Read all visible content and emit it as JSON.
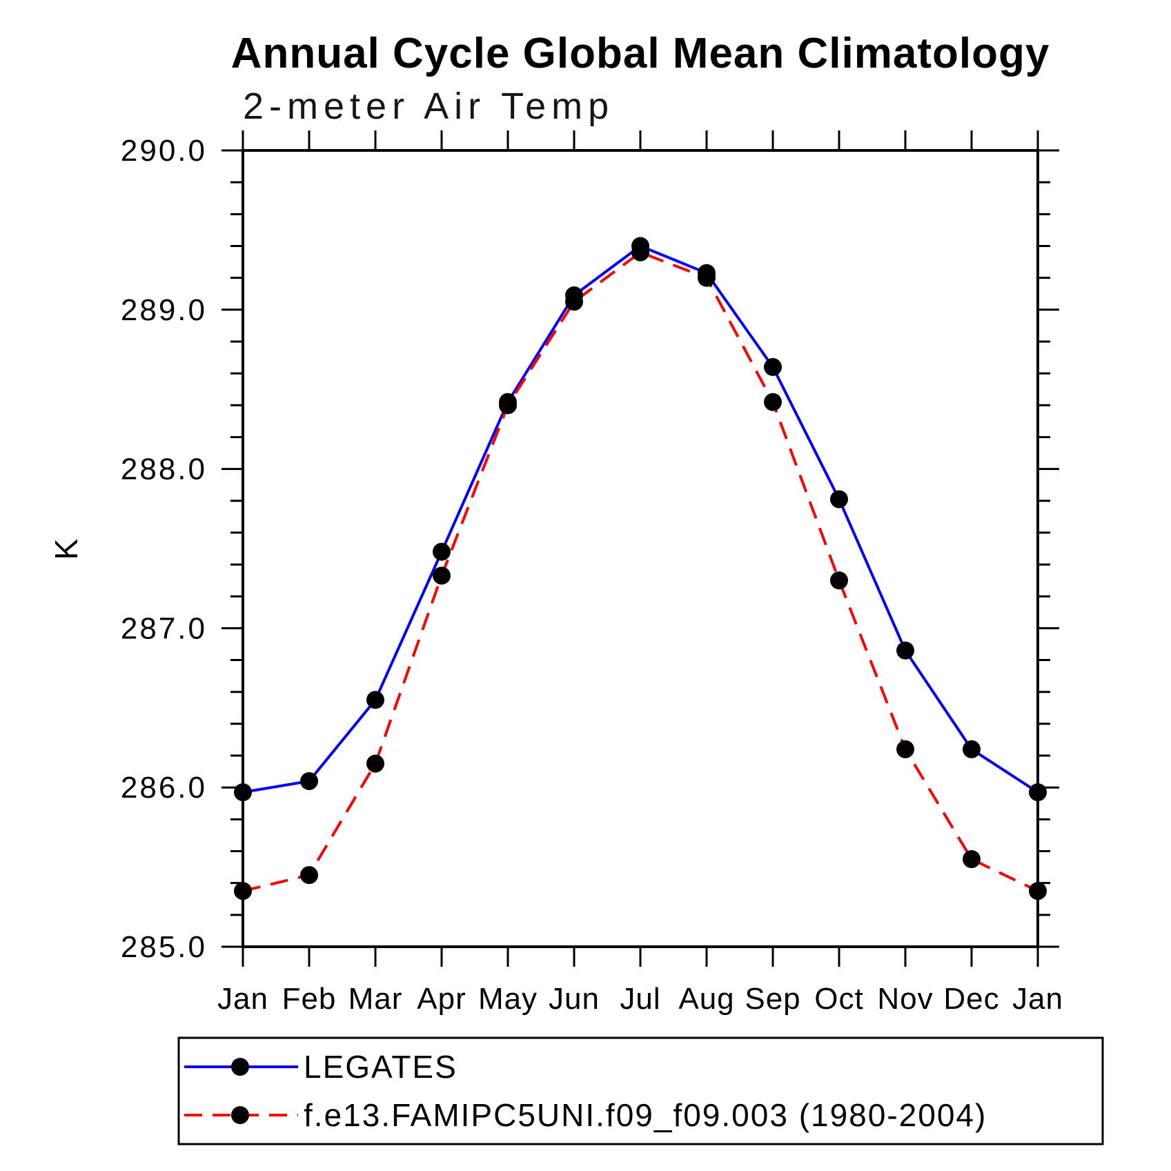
{
  "title": "Annual Cycle Global Mean Climatology",
  "subtitle": "2-meter Air Temp",
  "colors": {
    "background": "#ffffff",
    "axis": "#000000",
    "marker": "#000000",
    "legates_line": "#0000ff",
    "model_line": "#ff0000"
  },
  "chart_data": {
    "type": "line",
    "title": "Annual Cycle Global Mean Climatology",
    "subtitle": "2-meter Air Temp",
    "xlabel": "",
    "ylabel": "K",
    "categories": [
      "Jan",
      "Feb",
      "Mar",
      "Apr",
      "May",
      "Jun",
      "Jul",
      "Aug",
      "Sep",
      "Oct",
      "Nov",
      "Dec",
      "Jan"
    ],
    "ylim": [
      285.0,
      290.0
    ],
    "yticks": [
      "285.0",
      "286.0",
      "287.0",
      "288.0",
      "289.0",
      "290.0"
    ],
    "ytick_minor_step": 0.2,
    "grid": false,
    "legend_position": "below-left",
    "series": [
      {
        "name": "LEGATES",
        "color": "#0000ff",
        "style": "solid",
        "marker": "circle",
        "marker_color": "#000000",
        "values": [
          285.97,
          286.04,
          286.55,
          287.48,
          288.42,
          289.09,
          289.4,
          289.23,
          288.64,
          287.81,
          286.86,
          286.24,
          285.97
        ]
      },
      {
        "name": "f.e13.FAMIPC5UNI.f09_f09.003 (1980-2004)",
        "color": "#ff0000",
        "style": "dashed",
        "marker": "circle",
        "marker_color": "#000000",
        "values": [
          285.35,
          285.45,
          286.15,
          287.33,
          288.4,
          289.05,
          289.36,
          289.2,
          288.42,
          287.3,
          286.24,
          285.55,
          285.35
        ]
      }
    ]
  }
}
